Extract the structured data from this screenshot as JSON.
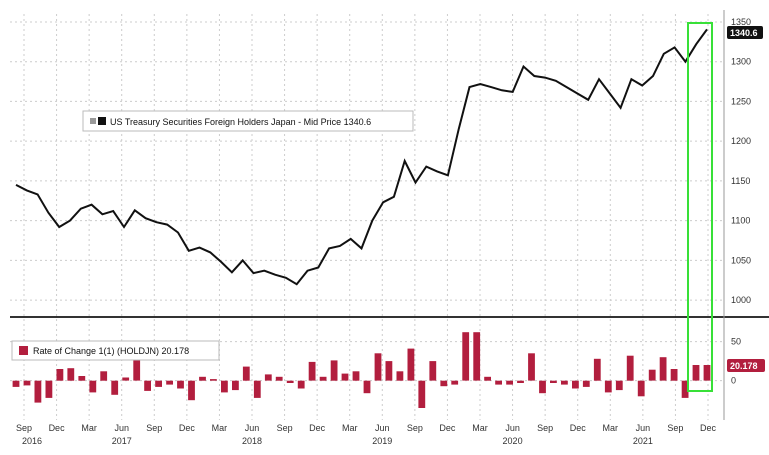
{
  "chart_data": [
    {
      "type": "line",
      "legend": "US Treasury Securities Foreign Holders Japan - Mid Price 1340.6",
      "last_value_label": "1340.6",
      "ylim": [
        985,
        1355
      ],
      "yticks": [
        1000,
        1050,
        1100,
        1150,
        1200,
        1250,
        1300,
        1350
      ],
      "series_color": "#111111",
      "values": [
        1145,
        1138,
        1133,
        1110,
        1092,
        1100,
        1115,
        1120,
        1108,
        1112,
        1092,
        1113,
        1103,
        1098,
        1095,
        1085,
        1062,
        1066,
        1060,
        1048,
        1035,
        1050,
        1034,
        1037,
        1032,
        1028,
        1020,
        1037,
        1041,
        1065,
        1068,
        1077,
        1065,
        1100,
        1123,
        1130,
        1175,
        1148,
        1168,
        1162,
        1157,
        1215,
        1268,
        1272,
        1268,
        1264,
        1262,
        1294,
        1282,
        1280,
        1276,
        1268,
        1260,
        1252,
        1278,
        1260,
        1242,
        1278,
        1270,
        1282,
        1310,
        1318,
        1300,
        1322,
        1340.6
      ]
    },
    {
      "type": "bar",
      "legend": "Rate of Change 1(1) (HOLDJN) 20.178",
      "last_value_label": "20.178",
      "ylim": [
        -35,
        70
      ],
      "yticks": [
        0,
        50
      ],
      "ytick_labels": [
        "0",
        "50"
      ],
      "bar_color": "#b21e3e",
      "values": [
        -8,
        -6,
        -28,
        -22,
        15,
        16,
        6,
        -15,
        12,
        -18,
        4,
        30,
        -13,
        -8,
        -5,
        -10,
        -25,
        5,
        2,
        -15,
        -12,
        18,
        -22,
        8,
        5,
        -3,
        -10,
        24,
        5,
        26,
        9,
        12,
        -16,
        35,
        25,
        12,
        41,
        -35,
        25,
        -7,
        -5,
        62,
        62,
        5,
        -5,
        -5,
        -3,
        35,
        -16,
        -3,
        -5,
        -10,
        -8,
        28,
        -15,
        -12,
        32,
        -20,
        14,
        30,
        15,
        -22,
        20,
        20
      ]
    }
  ],
  "x_axis": {
    "months": [
      "Sep",
      "Dec",
      "Mar",
      "Jun",
      "Sep",
      "Dec",
      "Mar",
      "Jun",
      "Sep",
      "Dec",
      "Mar",
      "Jun",
      "Sep",
      "Dec",
      "Mar",
      "Jun",
      "Sep",
      "Dec",
      "Mar",
      "Jun",
      "Sep",
      "Dec"
    ],
    "years": [
      "2016",
      "2017",
      "2018",
      "2019",
      "2020",
      "2021"
    ],
    "year_tick_index": [
      0,
      3,
      7,
      11,
      15,
      19
    ]
  },
  "colors": {
    "highlight_box": "#38e038",
    "grid": "#cccccc",
    "divider": "#333333",
    "badge_bg": "#111111",
    "bar_badge_bg": "#b21e3e"
  }
}
